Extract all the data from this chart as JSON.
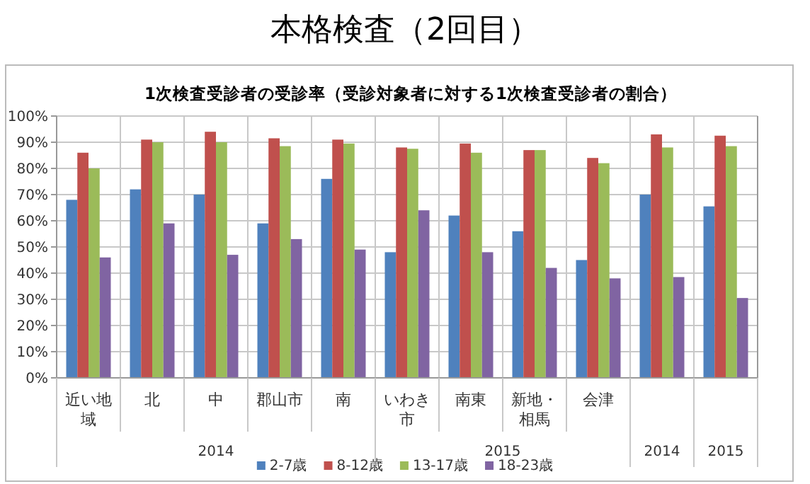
{
  "chart_data": {
    "type": "bar",
    "title": "本格検査（2回目）",
    "subtitle": "1次検査受診者の受診率（受診対象者に対する1次検査受診者の割合）",
    "categories": [
      "近い地域",
      "北",
      "中",
      "郡山市",
      "南",
      "いわき市",
      "南東",
      "新地・相馬",
      "会津",
      null,
      null
    ],
    "annotations": [
      "2014",
      "2015",
      "2014",
      "2015"
    ],
    "series": [
      {
        "name": "2-7歳",
        "color": "#4f81bd",
        "values": [
          68,
          72,
          70,
          59,
          76,
          48,
          62,
          56,
          45,
          70,
          65.5
        ]
      },
      {
        "name": "8-12歳",
        "color": "#c0504d",
        "values": [
          86,
          91,
          94,
          91.5,
          91,
          88,
          89.5,
          87,
          84,
          93,
          92.5
        ]
      },
      {
        "name": "13-17歳",
        "color": "#9bbb59",
        "values": [
          80,
          90,
          90,
          88.5,
          89.5,
          87.5,
          86,
          87,
          82,
          88,
          88.5
        ]
      },
      {
        "name": "18-23歳",
        "color": "#8064a2",
        "values": [
          46,
          59,
          47,
          53,
          49,
          64,
          48,
          42,
          38,
          38.5,
          30.5
        ]
      }
    ],
    "ylim": [
      0,
      100
    ],
    "yticks": [
      {
        "value": 0,
        "label": "0%"
      },
      {
        "value": 10,
        "label": "10%"
      },
      {
        "value": 20,
        "label": "20%"
      },
      {
        "value": 30,
        "label": "30%"
      },
      {
        "value": 40,
        "label": "40%"
      },
      {
        "value": 50,
        "label": "50%"
      },
      {
        "value": 60,
        "label": "60%"
      },
      {
        "value": 70,
        "label": "70%"
      },
      {
        "value": 80,
        "label": "80%"
      },
      {
        "value": 90,
        "label": "90%"
      },
      {
        "value": 100,
        "label": "100%"
      }
    ],
    "grid": "y",
    "legend": "bottom"
  }
}
